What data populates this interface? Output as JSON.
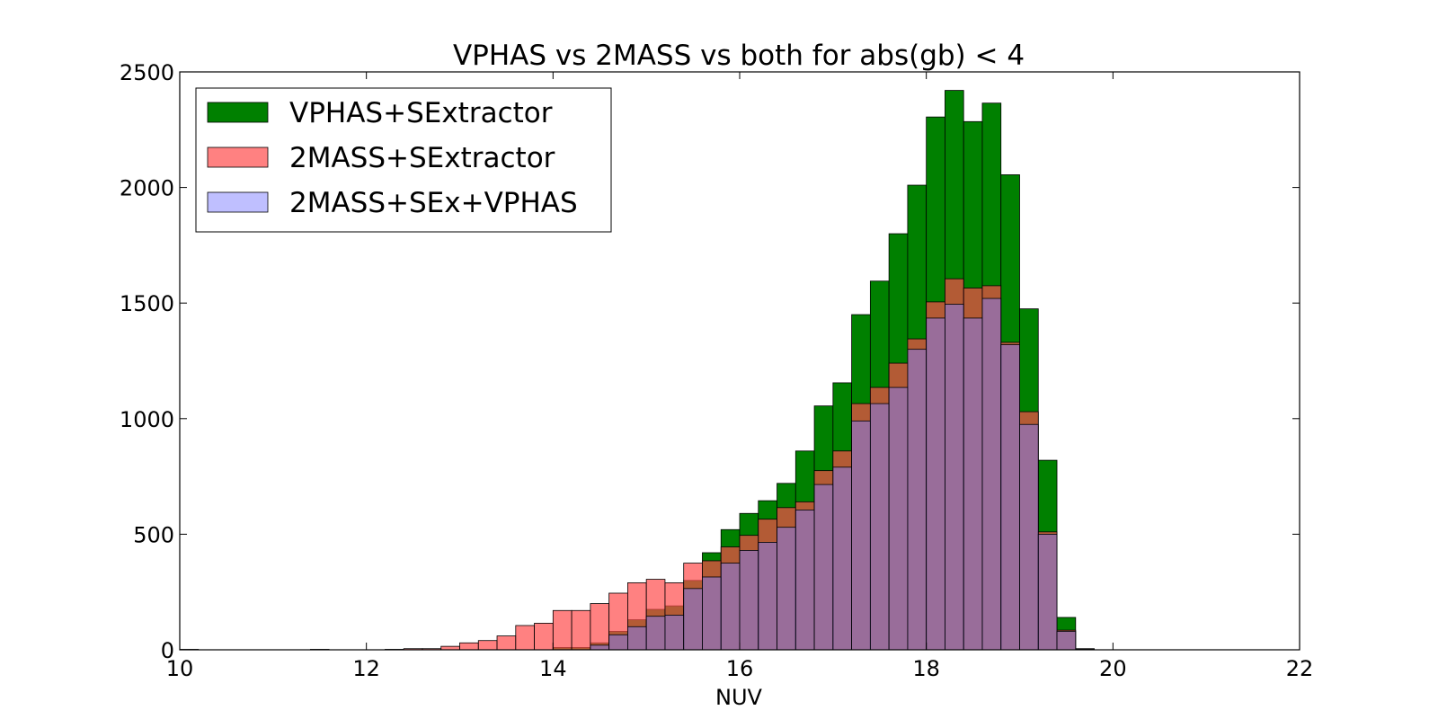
{
  "chart_data": {
    "type": "bar",
    "title": "VPHAS vs 2MASS vs both for abs(gb) < 4",
    "xlabel": "NUV",
    "ylabel": "",
    "xlim": [
      10,
      22
    ],
    "ylim": [
      0,
      2500
    ],
    "xticks": [
      "10",
      "12",
      "14",
      "16",
      "18",
      "20",
      "22"
    ],
    "yticks": [
      "0",
      "500",
      "1000",
      "1500",
      "2000",
      "2500"
    ],
    "grid": false,
    "legend_position": "top-left",
    "bin_width": 0.2,
    "bin_starts": [
      10.0,
      10.2,
      10.4,
      10.6,
      10.8,
      11.0,
      11.2,
      11.4,
      11.6,
      11.8,
      12.0,
      12.2,
      12.4,
      12.6,
      12.8,
      13.0,
      13.2,
      13.4,
      13.6,
      13.8,
      14.0,
      14.2,
      14.4,
      14.6,
      14.8,
      15.0,
      15.2,
      15.4,
      15.6,
      15.8,
      16.0,
      16.2,
      16.4,
      16.6,
      16.8,
      17.0,
      17.2,
      17.4,
      17.6,
      17.8,
      18.0,
      18.2,
      18.4,
      18.6,
      18.8,
      19.0,
      19.2,
      19.4,
      19.6,
      19.8
    ],
    "series": [
      {
        "name": "VPHAS+SExtractor",
        "color": "#008000",
        "values": [
          0,
          0,
          0,
          0,
          0,
          0,
          0,
          0,
          0,
          0,
          0,
          0,
          0,
          0,
          0,
          0,
          0,
          0,
          0,
          0,
          10,
          10,
          30,
          80,
          130,
          175,
          190,
          300,
          420,
          520,
          590,
          645,
          720,
          860,
          1055,
          1155,
          1450,
          1595,
          1800,
          2010,
          2305,
          2420,
          2285,
          2365,
          2055,
          1475,
          820,
          140,
          5,
          0
        ]
      },
      {
        "name": "2MASS+SExtractor",
        "color": "#ff4c4c",
        "values": [
          2,
          0,
          0,
          0,
          0,
          0,
          0,
          2,
          0,
          0,
          0,
          2,
          5,
          5,
          15,
          30,
          40,
          60,
          105,
          115,
          170,
          170,
          200,
          245,
          290,
          305,
          290,
          375,
          385,
          445,
          495,
          565,
          615,
          640,
          775,
          860,
          1065,
          1135,
          1240,
          1345,
          1505,
          1605,
          1565,
          1575,
          1330,
          1030,
          510,
          85,
          3,
          0
        ]
      },
      {
        "name": "2MASS+SEx+VPHAS",
        "color": "#7f7fff",
        "values": [
          0,
          0,
          0,
          0,
          0,
          0,
          0,
          0,
          0,
          0,
          0,
          0,
          0,
          0,
          0,
          0,
          0,
          0,
          0,
          0,
          0,
          0,
          20,
          65,
          100,
          145,
          150,
          265,
          315,
          375,
          430,
          465,
          530,
          605,
          715,
          790,
          990,
          1065,
          1135,
          1300,
          1435,
          1495,
          1435,
          1520,
          1320,
          975,
          500,
          80,
          0,
          0
        ]
      }
    ]
  }
}
